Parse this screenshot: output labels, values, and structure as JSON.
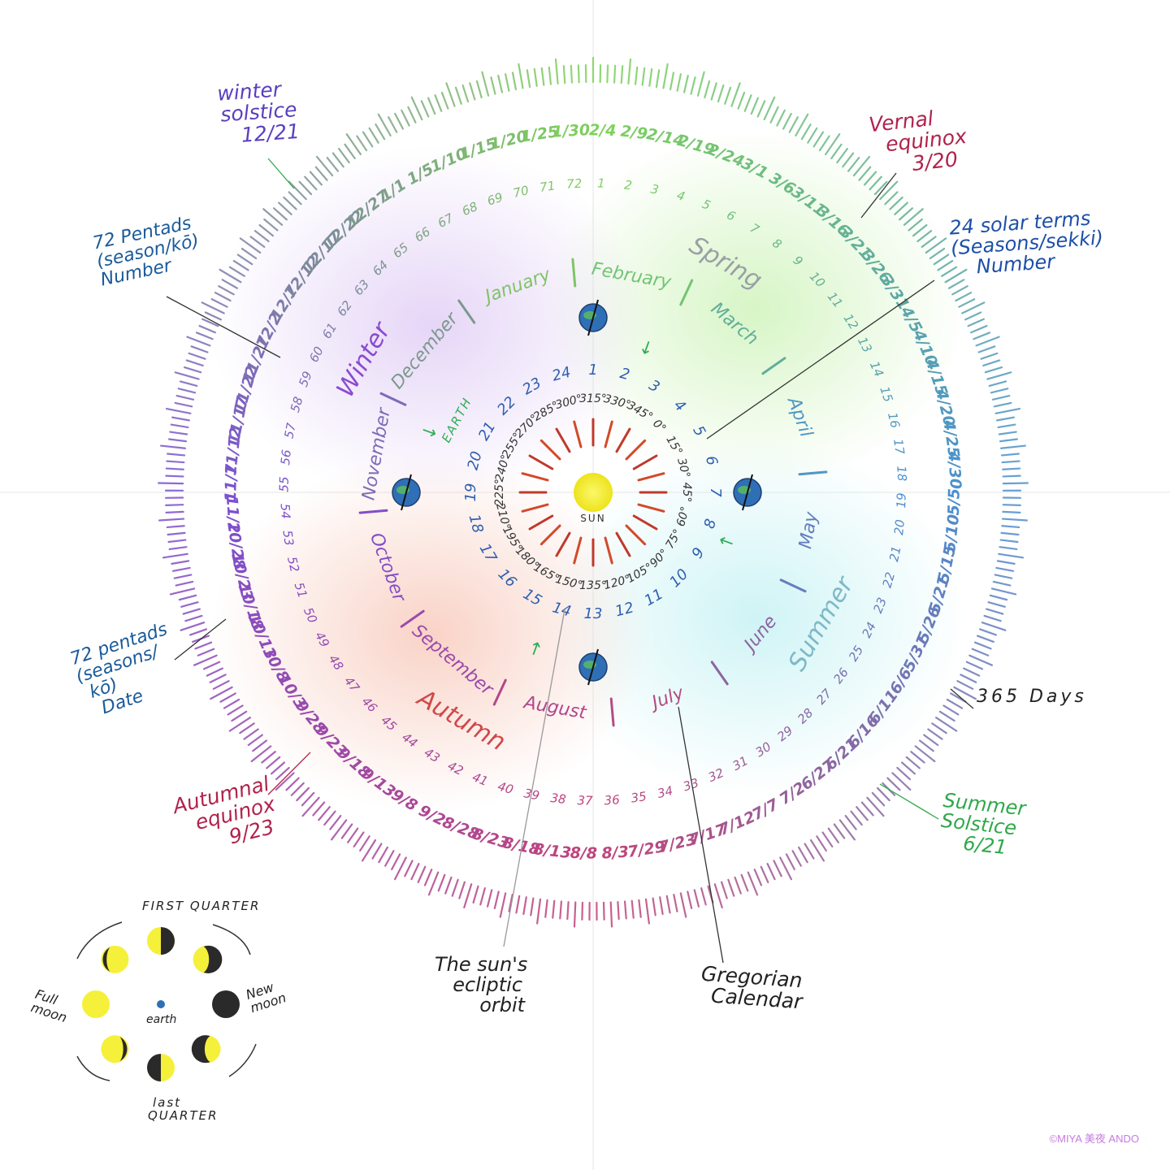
{
  "annotations": {
    "winter_solstice": [
      "winter",
      "solstice",
      "12/21"
    ],
    "vernal_equinox": [
      "Vernal",
      "equinox",
      "3/20"
    ],
    "solar_terms": [
      "24 solar terms",
      "(Seasons/sekki)",
      "Number"
    ],
    "pentads_number": [
      "72 Pentads",
      "(season/kō)",
      "Number"
    ],
    "pentads_date": [
      "72 pentads",
      "(seasons/",
      "kō)",
      "Date"
    ],
    "autumnal_equinox": [
      "Autumnal",
      "equinox",
      "9/23"
    ],
    "summer_solstice": [
      "Summer",
      "Solstice",
      "6/21"
    ],
    "days": "365 Days",
    "sun_orbit": [
      "The sun's",
      "ecliptic",
      "orbit"
    ],
    "gregorian": [
      "Gregorian",
      "Calendar"
    ]
  },
  "seasons": [
    "Spring",
    "Summer",
    "Autumn",
    "Winter"
  ],
  "months": [
    "January",
    "February",
    "March",
    "April",
    "May",
    "June",
    "July",
    "August",
    "September",
    "October",
    "November",
    "December"
  ],
  "sun_label": "SUN",
  "earth_label": "EARTH",
  "solar_terms": [
    "1",
    "2",
    "3",
    "4",
    "5",
    "6",
    "7",
    "8",
    "9",
    "10",
    "11",
    "12",
    "13",
    "14",
    "15",
    "16",
    "17",
    "18",
    "19",
    "20",
    "21",
    "22",
    "23",
    "24"
  ],
  "degrees": [
    "315°",
    "330°",
    "345°",
    "0°",
    "15°",
    "30°",
    "45°",
    "60°",
    "75°",
    "90°",
    "105°",
    "120°",
    "135°",
    "150°",
    "165°",
    "180°",
    "195°",
    "210°",
    "225°",
    "240°",
    "255°",
    "270°",
    "285°",
    "300°"
  ],
  "pentad_numbers": [
    "1",
    "2",
    "3",
    "4",
    "5",
    "6",
    "7",
    "8",
    "9",
    "10",
    "11",
    "12",
    "13",
    "14",
    "15",
    "16",
    "17",
    "18",
    "19",
    "20",
    "21",
    "22",
    "23",
    "24",
    "25",
    "26",
    "27",
    "28",
    "29",
    "30",
    "31",
    "32",
    "33",
    "34",
    "35",
    "36",
    "37",
    "38",
    "39",
    "40",
    "41",
    "42",
    "43",
    "44",
    "45",
    "46",
    "47",
    "48",
    "49",
    "50",
    "51",
    "52",
    "53",
    "54",
    "55",
    "56",
    "57",
    "58",
    "59",
    "60",
    "61",
    "62",
    "63",
    "64",
    "65",
    "66",
    "67",
    "68",
    "69",
    "70",
    "71",
    "72"
  ],
  "pentad_dates": [
    "2/4",
    "2/9",
    "2/14",
    "2/19",
    "2/24",
    "3/1",
    "3/6",
    "3/11",
    "3/16",
    "3/21",
    "3/26",
    "3/31",
    "4/5",
    "4/10",
    "4/15",
    "4/20",
    "4/25",
    "4/30",
    "5/5",
    "5/10",
    "5/15",
    "5/21",
    "5/26",
    "5/31",
    "6/6",
    "6/11",
    "6/16",
    "6/21",
    "6/27",
    "7/2",
    "7/7",
    "7/12",
    "7/17",
    "7/23",
    "7/29",
    "8/3",
    "8/8",
    "8/13",
    "8/18",
    "8/23",
    "8/28",
    "9/2",
    "9/8",
    "9/13",
    "9/18",
    "9/23",
    "9/28",
    "10/3",
    "10/8",
    "10/13",
    "10/18",
    "10/23",
    "10/28",
    "11/2",
    "11/7",
    "11/12",
    "11/17",
    "11/22",
    "11/27",
    "12/2",
    "12/7",
    "12/12",
    "12/17",
    "12/22",
    "12/27",
    "1/1",
    "1/5",
    "1/10",
    "1/15",
    "1/20",
    "1/25",
    "1/30"
  ],
  "moon": {
    "first_quarter": "FIRST QUARTER",
    "full_moon": [
      "Full",
      "moon"
    ],
    "new_moon": [
      "New",
      "moon"
    ],
    "last_quarter": [
      "last",
      "QUARTER"
    ],
    "earth": "earth"
  },
  "credit": "©MIYA 美夜 ANDO",
  "colors": {
    "winter": "#7b4fd0",
    "spring": "#7fd35a",
    "summer": "#4a8fd0",
    "autumn": "#c2447a",
    "sun": "#f2ee2a",
    "earth": "#2f6fb6"
  }
}
